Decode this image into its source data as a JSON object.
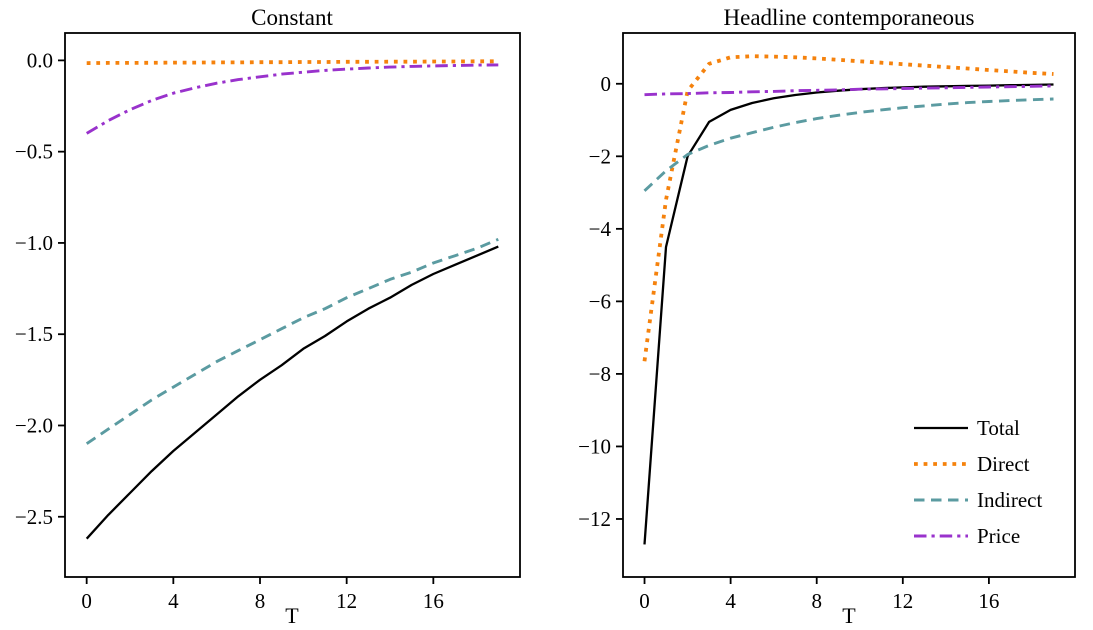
{
  "figure": {
    "background": "#ffffff"
  },
  "colors": {
    "total": "#000000",
    "direct": "#f5820d",
    "indirect": "#5b9ba1",
    "price": "#9932cc",
    "axis": "#000000",
    "text": "#000000"
  },
  "legend": {
    "position": "lower right",
    "frame": false,
    "entries": [
      {
        "label": "Total",
        "series": "Total"
      },
      {
        "label": "Direct",
        "series": "Direct"
      },
      {
        "label": "Indirect",
        "series": "Indirect"
      },
      {
        "label": "Price",
        "series": "Price"
      }
    ]
  },
  "chart_data": [
    {
      "type": "line",
      "title": "Constant",
      "xlabel": "T",
      "ylabel": "",
      "grid": false,
      "xlim": [
        -1,
        20
      ],
      "ylim": [
        -2.83,
        0.15
      ],
      "xticks": [
        0,
        4,
        8,
        12,
        16
      ],
      "xtick_labels": [
        "0",
        "4",
        "8",
        "12",
        "16"
      ],
      "yticks": [
        0.0,
        -0.5,
        -1.0,
        -1.5,
        -2.0,
        -2.5
      ],
      "ytick_labels": [
        "0.0",
        "−0.5",
        "−1.0",
        "−1.5",
        "−2.0",
        "−2.5"
      ],
      "x": [
        0,
        1,
        2,
        3,
        4,
        5,
        6,
        7,
        8,
        9,
        10,
        11,
        12,
        13,
        14,
        15,
        16,
        17,
        18,
        19
      ],
      "series": [
        {
          "name": "Total",
          "color": "#000000",
          "style": "solid",
          "values": [
            -2.62,
            -2.49,
            -2.37,
            -2.25,
            -2.14,
            -2.04,
            -1.94,
            -1.84,
            -1.75,
            -1.67,
            -1.58,
            -1.51,
            -1.43,
            -1.36,
            -1.3,
            -1.23,
            -1.17,
            -1.12,
            -1.07,
            -1.02
          ]
        },
        {
          "name": "Direct",
          "color": "#f5820d",
          "style": "dotted",
          "values": [
            -0.015,
            -0.014,
            -0.014,
            -0.013,
            -0.012,
            -0.012,
            -0.011,
            -0.011,
            -0.01,
            -0.01,
            -0.009,
            -0.009,
            -0.008,
            -0.008,
            -0.007,
            -0.007,
            -0.006,
            -0.006,
            -0.005,
            -0.005
          ]
        },
        {
          "name": "Indirect",
          "color": "#5b9ba1",
          "style": "dashed",
          "values": [
            -2.1,
            -2.02,
            -1.94,
            -1.86,
            -1.79,
            -1.72,
            -1.65,
            -1.59,
            -1.53,
            -1.47,
            -1.41,
            -1.36,
            -1.3,
            -1.25,
            -1.2,
            -1.16,
            -1.11,
            -1.07,
            -1.03,
            -0.98
          ]
        },
        {
          "name": "Price",
          "color": "#9932cc",
          "style": "dashdot",
          "values": [
            -0.4,
            -0.33,
            -0.27,
            -0.22,
            -0.18,
            -0.15,
            -0.125,
            -0.105,
            -0.09,
            -0.075,
            -0.065,
            -0.055,
            -0.048,
            -0.042,
            -0.037,
            -0.033,
            -0.03,
            -0.028,
            -0.026,
            -0.025
          ]
        }
      ],
      "show_legend": false
    },
    {
      "type": "line",
      "title": "Headline contemporaneous",
      "xlabel": "T",
      "ylabel": "",
      "grid": false,
      "xlim": [
        -1,
        20
      ],
      "ylim": [
        -13.6,
        1.4
      ],
      "xticks": [
        0,
        4,
        8,
        12,
        16
      ],
      "xtick_labels": [
        "0",
        "4",
        "8",
        "12",
        "16"
      ],
      "yticks": [
        0,
        -2,
        -4,
        -6,
        -8,
        -10,
        -12
      ],
      "ytick_labels": [
        "0",
        "−2",
        "−4",
        "−6",
        "−8",
        "−10",
        "−12"
      ],
      "x": [
        0,
        1,
        2,
        3,
        4,
        5,
        6,
        7,
        8,
        9,
        10,
        11,
        12,
        13,
        14,
        15,
        16,
        17,
        18,
        19
      ],
      "series": [
        {
          "name": "Total",
          "color": "#000000",
          "style": "solid",
          "values": [
            -12.7,
            -4.5,
            -2.0,
            -1.05,
            -0.72,
            -0.53,
            -0.4,
            -0.31,
            -0.24,
            -0.19,
            -0.15,
            -0.12,
            -0.1,
            -0.08,
            -0.07,
            -0.06,
            -0.05,
            -0.04,
            -0.03,
            -0.02
          ]
        },
        {
          "name": "Direct",
          "color": "#f5820d",
          "style": "dotted",
          "values": [
            -7.65,
            -3.2,
            -0.2,
            0.55,
            0.73,
            0.76,
            0.75,
            0.73,
            0.7,
            0.66,
            0.62,
            0.58,
            0.54,
            0.5,
            0.46,
            0.42,
            0.38,
            0.34,
            0.3,
            0.27
          ]
        },
        {
          "name": "Indirect",
          "color": "#5b9ba1",
          "style": "dashed",
          "values": [
            -2.95,
            -2.4,
            -1.95,
            -1.7,
            -1.5,
            -1.35,
            -1.2,
            -1.07,
            -0.96,
            -0.87,
            -0.79,
            -0.72,
            -0.66,
            -0.61,
            -0.56,
            -0.52,
            -0.49,
            -0.46,
            -0.44,
            -0.42
          ]
        },
        {
          "name": "Price",
          "color": "#9932cc",
          "style": "dashdot",
          "values": [
            -0.3,
            -0.28,
            -0.27,
            -0.25,
            -0.24,
            -0.22,
            -0.21,
            -0.19,
            -0.18,
            -0.17,
            -0.15,
            -0.14,
            -0.13,
            -0.12,
            -0.11,
            -0.1,
            -0.09,
            -0.08,
            -0.07,
            -0.06
          ]
        }
      ],
      "show_legend": true
    }
  ]
}
